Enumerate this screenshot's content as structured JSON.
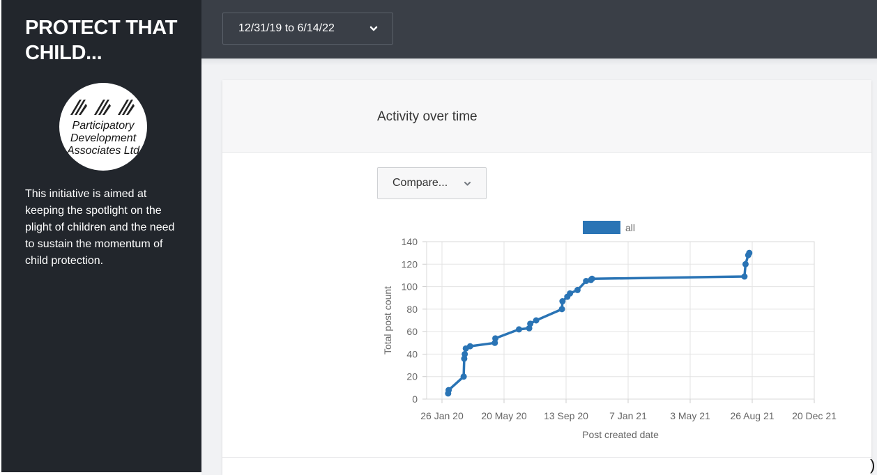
{
  "sidebar": {
    "title": "PROTECT THAT CHILD...",
    "logo_text": [
      "Participatory",
      "Development",
      "Associates Ltd"
    ],
    "description": "This initiative is aimed at keeping the spotlight on the plight of children and the need to sustain the momentum of child protection."
  },
  "topbar": {
    "date_range": "12/31/19 to 6/14/22",
    "date_icon": "chevron-down-icon"
  },
  "card": {
    "title": "Activity over time",
    "compare_label": "Compare...",
    "compare_icon": "chevron-down-icon"
  },
  "colors": {
    "sidebar_bg": "#22262c",
    "topbar_bg": "#3a3f47",
    "series": "#2a74b5"
  },
  "chart_data": {
    "type": "line",
    "xlabel": "Post created date",
    "ylabel": "Total post count",
    "x_ticks": [
      "26 Jan 20",
      "20 May 20",
      "13 Sep 20",
      "7 Jan 21",
      "3 May 21",
      "26 Aug 21",
      "20 Dec 21"
    ],
    "y_ticks": [
      "0",
      "20",
      "40",
      "60",
      "80",
      "100",
      "120",
      "140"
    ],
    "ylim": [
      0,
      140
    ],
    "xlim": [
      "2020-01-12",
      "2022-01-03"
    ],
    "grid": true,
    "legend": "top-center",
    "series": [
      {
        "name": "all",
        "color": "#2a74b5",
        "points": [
          {
            "x": "2020-02-21",
            "y": 5
          },
          {
            "x": "2020-02-22",
            "y": 8
          },
          {
            "x": "2020-03-21",
            "y": 20
          },
          {
            "x": "2020-03-22",
            "y": 36
          },
          {
            "x": "2020-03-23",
            "y": 40
          },
          {
            "x": "2020-03-25",
            "y": 45
          },
          {
            "x": "2020-04-02",
            "y": 47
          },
          {
            "x": "2020-05-18",
            "y": 50
          },
          {
            "x": "2020-05-19",
            "y": 54
          },
          {
            "x": "2020-07-02",
            "y": 62
          },
          {
            "x": "2020-07-21",
            "y": 63
          },
          {
            "x": "2020-07-23",
            "y": 67
          },
          {
            "x": "2020-08-03",
            "y": 70
          },
          {
            "x": "2020-09-20",
            "y": 80
          },
          {
            "x": "2020-09-21",
            "y": 87
          },
          {
            "x": "2020-09-30",
            "y": 91
          },
          {
            "x": "2020-10-05",
            "y": 94
          },
          {
            "x": "2020-10-19",
            "y": 97
          },
          {
            "x": "2020-11-04",
            "y": 105
          },
          {
            "x": "2020-11-13",
            "y": 106
          },
          {
            "x": "2020-11-15",
            "y": 107
          },
          {
            "x": "2021-08-26",
            "y": 109
          },
          {
            "x": "2021-08-28",
            "y": 120
          },
          {
            "x": "2021-09-02",
            "y": 128
          },
          {
            "x": "2021-09-04",
            "y": 130
          }
        ]
      }
    ]
  }
}
